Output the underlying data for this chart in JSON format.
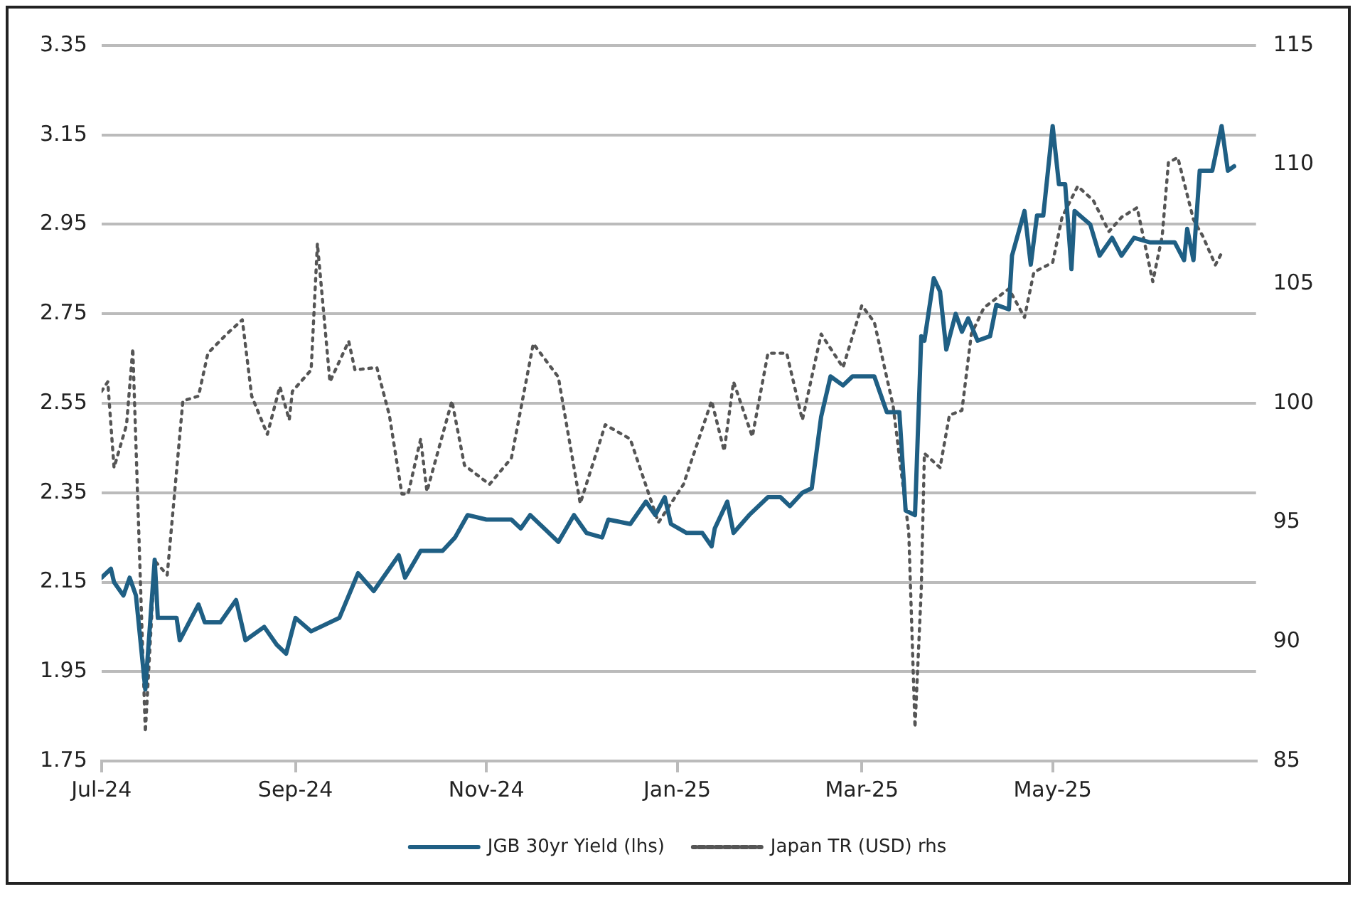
{
  "chart_data": {
    "type": "line",
    "xlim": [
      "2024-07-01",
      "2025-07-05"
    ],
    "xticks": [
      {
        "value": "2024-07-01",
        "label": "Jul-24"
      },
      {
        "value": "2024-09-01",
        "label": "Sep-24"
      },
      {
        "value": "2024-11-01",
        "label": "Nov-24"
      },
      {
        "value": "2025-01-01",
        "label": "Jan-25"
      },
      {
        "value": "2025-03-01",
        "label": "Mar-25"
      },
      {
        "value": "2025-05-01",
        "label": "May-25"
      }
    ],
    "ylim": [
      1.75,
      3.35
    ],
    "yticks": [
      {
        "value": 1.75,
        "label": "1.75"
      },
      {
        "value": 1.95,
        "label": "1.95"
      },
      {
        "value": 2.15,
        "label": "2.15"
      },
      {
        "value": 2.35,
        "label": "2.35"
      },
      {
        "value": 2.55,
        "label": "2.55"
      },
      {
        "value": 2.75,
        "label": "2.75"
      },
      {
        "value": 2.95,
        "label": "2.95"
      },
      {
        "value": 3.15,
        "label": "3.15"
      },
      {
        "value": 3.35,
        "label": "3.35"
      }
    ],
    "y2lim": [
      85,
      115
    ],
    "y2ticks": [
      85,
      90,
      95,
      100,
      105,
      110,
      115
    ],
    "grid": "y",
    "legend": "bottom",
    "marker": "none",
    "series": [
      {
        "name": "JGB 30yr Yield (lhs)",
        "color": "#1f5f84",
        "line_style": "solid",
        "x": [
          "2024-07-01",
          "2024-07-04",
          "2024-07-05",
          "2024-07-08",
          "2024-07-10",
          "2024-07-12",
          "2024-07-15",
          "2024-07-18",
          "2024-07-19",
          "2024-07-25",
          "2024-07-26",
          "2024-08-01",
          "2024-08-03",
          "2024-08-08",
          "2024-08-13",
          "2024-08-16",
          "2024-08-22",
          "2024-08-26",
          "2024-08-29",
          "2024-09-01",
          "2024-09-06",
          "2024-09-15",
          "2024-09-21",
          "2024-09-26",
          "2024-10-04",
          "2024-10-06",
          "2024-10-11",
          "2024-10-18",
          "2024-10-22",
          "2024-10-26",
          "2024-11-01",
          "2024-11-09",
          "2024-11-12",
          "2024-11-15",
          "2024-11-24",
          "2024-11-29",
          "2024-12-03",
          "2024-12-08",
          "2024-12-10",
          "2024-12-17",
          "2024-12-22",
          "2024-12-25",
          "2024-12-28",
          "2024-12-30",
          "2025-01-04",
          "2025-01-09",
          "2025-01-12",
          "2025-01-13",
          "2025-01-17",
          "2025-01-19",
          "2025-01-24",
          "2025-01-30",
          "2025-02-03",
          "2025-02-06",
          "2025-02-10",
          "2025-02-13",
          "2025-02-16",
          "2025-02-19",
          "2025-02-23",
          "2025-02-26",
          "2025-03-05",
          "2025-03-09",
          "2025-03-13",
          "2025-03-15",
          "2025-03-18",
          "2025-03-20",
          "2025-03-21",
          "2025-03-24",
          "2025-03-26",
          "2025-03-28",
          "2025-03-31",
          "2025-04-02",
          "2025-04-04",
          "2025-04-07",
          "2025-04-11",
          "2025-04-13",
          "2025-04-17",
          "2025-04-18",
          "2025-04-22",
          "2025-04-24",
          "2025-04-26",
          "2025-04-28",
          "2025-05-01",
          "2025-05-03",
          "2025-05-05",
          "2025-05-07",
          "2025-05-08",
          "2025-05-13",
          "2025-05-16",
          "2025-05-20",
          "2025-05-23",
          "2025-05-27",
          "2025-06-01",
          "2025-06-09",
          "2025-06-12",
          "2025-06-13",
          "2025-06-15",
          "2025-06-17",
          "2025-06-21",
          "2025-06-24",
          "2025-06-26",
          "2025-06-28"
        ],
        "values": [
          2.16,
          2.18,
          2.15,
          2.12,
          2.16,
          2.12,
          1.91,
          2.2,
          2.07,
          2.07,
          2.02,
          2.1,
          2.06,
          2.06,
          2.11,
          2.02,
          2.05,
          2.01,
          1.99,
          2.07,
          2.04,
          2.07,
          2.17,
          2.13,
          2.21,
          2.16,
          2.22,
          2.22,
          2.25,
          2.3,
          2.29,
          2.29,
          2.27,
          2.3,
          2.24,
          2.3,
          2.26,
          2.25,
          2.29,
          2.28,
          2.33,
          2.3,
          2.34,
          2.28,
          2.26,
          2.26,
          2.23,
          2.27,
          2.33,
          2.26,
          2.3,
          2.34,
          2.34,
          2.32,
          2.35,
          2.36,
          2.52,
          2.61,
          2.59,
          2.61,
          2.61,
          2.53,
          2.53,
          2.31,
          2.3,
          2.7,
          2.69,
          2.83,
          2.8,
          2.67,
          2.75,
          2.71,
          2.74,
          2.69,
          2.7,
          2.77,
          2.76,
          2.88,
          2.98,
          2.86,
          2.97,
          2.97,
          3.17,
          3.04,
          3.04,
          2.85,
          2.98,
          2.95,
          2.88,
          2.92,
          2.88,
          2.92,
          2.91,
          2.91,
          2.87,
          2.94,
          2.87,
          3.07,
          3.07,
          3.17,
          3.07,
          3.08
        ]
      },
      {
        "name": "Japan TR (USD) rhs",
        "color": "#555555",
        "line_style": "dotted",
        "axis": "y2",
        "x": [
          "2024-07-01",
          "2024-07-03",
          "2024-07-05",
          "2024-07-09",
          "2024-07-11",
          "2024-07-15",
          "2024-07-18",
          "2024-07-22",
          "2024-07-27",
          "2024-08-01",
          "2024-08-04",
          "2024-08-10",
          "2024-08-15",
          "2024-08-18",
          "2024-08-23",
          "2024-08-27",
          "2024-08-30",
          "2024-08-31",
          "2024-09-06",
          "2024-09-08",
          "2024-09-12",
          "2024-09-18",
          "2024-09-20",
          "2024-09-27",
          "2024-10-01",
          "2024-10-05",
          "2024-10-07",
          "2024-10-11",
          "2024-10-13",
          "2024-10-21",
          "2024-10-25",
          "2024-11-02",
          "2024-11-09",
          "2024-11-16",
          "2024-11-24",
          "2024-12-01",
          "2024-12-09",
          "2024-12-17",
          "2024-12-26",
          "2025-01-03",
          "2025-01-12",
          "2025-01-16",
          "2025-01-19",
          "2025-01-25",
          "2025-01-30",
          "2025-02-05",
          "2025-02-10",
          "2025-02-16",
          "2025-02-23",
          "2025-03-01",
          "2025-03-05",
          "2025-03-11",
          "2025-03-16",
          "2025-03-18",
          "2025-03-20",
          "2025-03-21",
          "2025-03-26",
          "2025-03-29",
          "2025-04-02",
          "2025-04-05",
          "2025-04-09",
          "2025-04-17",
          "2025-04-22",
          "2025-04-25",
          "2025-05-01",
          "2025-05-04",
          "2025-05-09",
          "2025-05-14",
          "2025-05-19",
          "2025-05-23",
          "2025-05-28",
          "2025-06-02",
          "2025-06-05",
          "2025-06-07",
          "2025-06-10",
          "2025-06-15",
          "2025-06-18",
          "2025-06-22",
          "2025-06-24"
        ],
        "values": [
          100.5,
          100.9,
          97.3,
          99.1,
          102.3,
          86.2,
          93.4,
          92.8,
          100.1,
          100.3,
          102.1,
          102.9,
          103.5,
          100.3,
          98.7,
          100.7,
          99.3,
          100.5,
          101.4,
          106.7,
          100.9,
          102.6,
          101.4,
          101.5,
          99.5,
          96.2,
          96.2,
          98.5,
          96.3,
          100.1,
          97.4,
          96.6,
          97.7,
          102.5,
          101.1,
          95.8,
          99.1,
          98.5,
          95.0,
          96.6,
          100.1,
          98.0,
          100.9,
          98.6,
          102.1,
          102.1,
          99.3,
          102.9,
          101.5,
          104.1,
          103.4,
          99.9,
          94.6,
          86.4,
          92.2,
          97.9,
          97.3,
          99.5,
          99.7,
          102.9,
          104.0,
          104.8,
          103.6,
          105.5,
          105.9,
          107.8,
          109.1,
          108.5,
          107.2,
          107.8,
          108.2,
          105.1,
          107.0,
          110.1,
          110.3,
          107.7,
          107.0,
          105.8,
          106.3
        ]
      }
    ]
  }
}
